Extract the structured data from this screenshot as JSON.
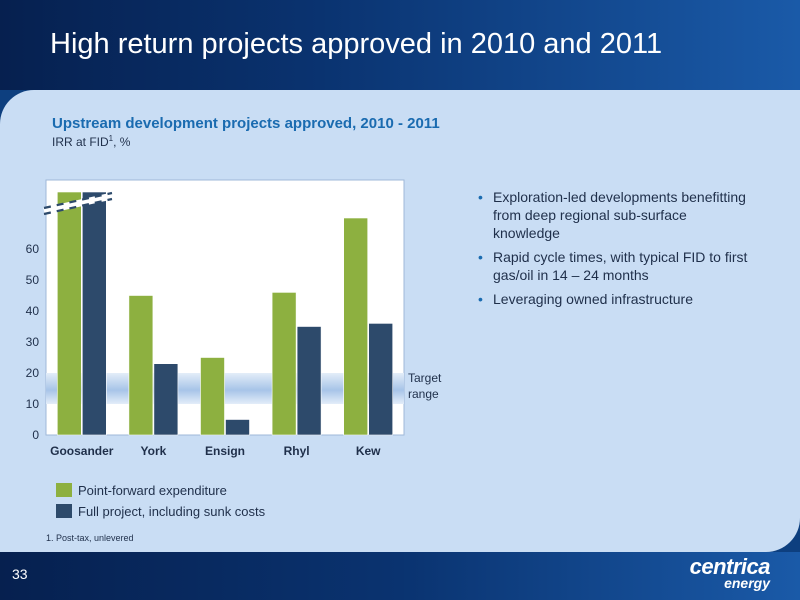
{
  "slide": {
    "title": "High return projects approved in 2010 and 2011",
    "page_number": "33",
    "footnote": "1.   Post-tax, unlevered",
    "logo_line1": "centrica",
    "logo_line2": "energy"
  },
  "bullets": [
    "Exploration-led developments benefitting from deep regional sub-surface knowledge",
    "Rapid cycle times, with typical FID to first gas/oil in 14 – 24 months",
    "Leveraging owned infrastructure"
  ],
  "chart_data": {
    "type": "bar",
    "title": "Upstream development projects approved, 2010 - 2011",
    "subtitle_main": "IRR at FID",
    "subtitle_sup": "1",
    "subtitle_tail": ", %",
    "categories": [
      "Goosander",
      "York",
      "Ensign",
      "Rhyl",
      "Kew"
    ],
    "series": [
      {
        "name": "Point-forward expenditure",
        "color": "#8db040",
        "values": [
          80,
          45,
          25,
          46,
          70
        ]
      },
      {
        "name": "Full project, including sunk costs",
        "color": "#2d4a6b",
        "values": [
          80,
          23,
          5,
          35,
          36
        ]
      }
    ],
    "y_ticks": [
      0,
      10,
      20,
      30,
      40,
      50,
      60
    ],
    "ylim": [
      0,
      80
    ],
    "axis_break": true,
    "target_range": {
      "from": 10,
      "to": 20,
      "label_line1": "Target",
      "label_line2": "range",
      "color": "#a7c4e8"
    },
    "grid": false,
    "legend_position": "bottom-left"
  }
}
